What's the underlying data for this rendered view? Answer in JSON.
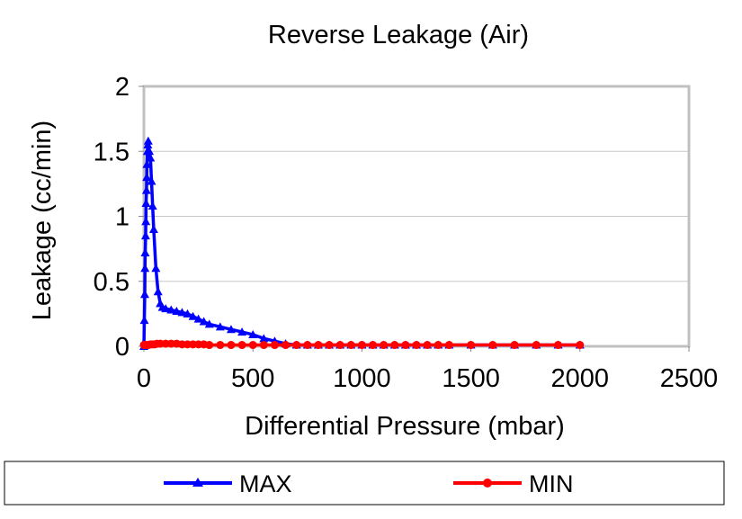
{
  "chart_data": {
    "type": "line",
    "title": "Reverse Leakage (Air)",
    "xlabel": "Differential Pressure (mbar)",
    "ylabel": "Leakage (cc/min)",
    "xlim": [
      0,
      2500
    ],
    "ylim": [
      0,
      2
    ],
    "xticks": [
      "0",
      "500",
      "1000",
      "1500",
      "2000",
      "2500"
    ],
    "yticks": [
      "0",
      "0.5",
      "1",
      "1.5",
      "2"
    ],
    "grid": true,
    "legend_position": "bottom",
    "series": [
      {
        "name": "MAX",
        "color": "#0000ff",
        "marker": "triangle",
        "x": [
          0,
          2,
          4,
          5,
          6,
          8,
          9,
          10,
          12,
          13,
          14,
          16,
          18,
          20,
          25,
          30,
          35,
          40,
          45,
          55,
          65,
          75,
          85,
          100,
          125,
          150,
          175,
          200,
          225,
          250,
          275,
          300,
          350,
          400,
          450,
          500,
          550,
          600,
          650,
          700,
          750,
          800,
          850,
          900,
          950,
          1000,
          1050,
          1100,
          1150,
          1200,
          1250,
          1300,
          1350,
          1400,
          1500,
          1600,
          1700,
          1800,
          1900,
          2000
        ],
        "y": [
          0,
          0.2,
          0.4,
          0.6,
          0.72,
          0.85,
          0.96,
          1.1,
          1.2,
          1.3,
          1.4,
          1.5,
          1.55,
          1.58,
          1.5,
          1.45,
          1.27,
          1.08,
          0.9,
          0.6,
          0.42,
          0.33,
          0.3,
          0.29,
          0.28,
          0.27,
          0.26,
          0.25,
          0.23,
          0.21,
          0.19,
          0.17,
          0.15,
          0.13,
          0.11,
          0.09,
          0.06,
          0.04,
          0.02,
          0.01,
          0.01,
          0.01,
          0.01,
          0.01,
          0.01,
          0.01,
          0.01,
          0.01,
          0.01,
          0.01,
          0.01,
          0.01,
          0.01,
          0.01,
          0.01,
          0.01,
          0.01,
          0.01,
          0.01,
          0.01
        ]
      },
      {
        "name": "MIN",
        "color": "#ff0000",
        "marker": "circle",
        "x": [
          0,
          5,
          10,
          20,
          30,
          40,
          50,
          60,
          75,
          100,
          125,
          150,
          175,
          200,
          225,
          250,
          275,
          300,
          350,
          400,
          450,
          500,
          550,
          600,
          650,
          700,
          750,
          800,
          850,
          900,
          950,
          1000,
          1050,
          1100,
          1150,
          1200,
          1250,
          1300,
          1350,
          1400,
          1500,
          1600,
          1700,
          1800,
          1900,
          2000
        ],
        "y": [
          0.01,
          0.01,
          0.01,
          0.01,
          0.015,
          0.015,
          0.015,
          0.02,
          0.02,
          0.02,
          0.02,
          0.02,
          0.015,
          0.015,
          0.015,
          0.015,
          0.015,
          0.01,
          0.01,
          0.01,
          0.01,
          0.01,
          0.01,
          0.01,
          0.01,
          0.01,
          0.01,
          0.01,
          0.01,
          0.01,
          0.01,
          0.01,
          0.01,
          0.01,
          0.01,
          0.01,
          0.01,
          0.01,
          0.01,
          0.01,
          0.01,
          0.01,
          0.01,
          0.01,
          0.01,
          0.01
        ]
      }
    ]
  }
}
